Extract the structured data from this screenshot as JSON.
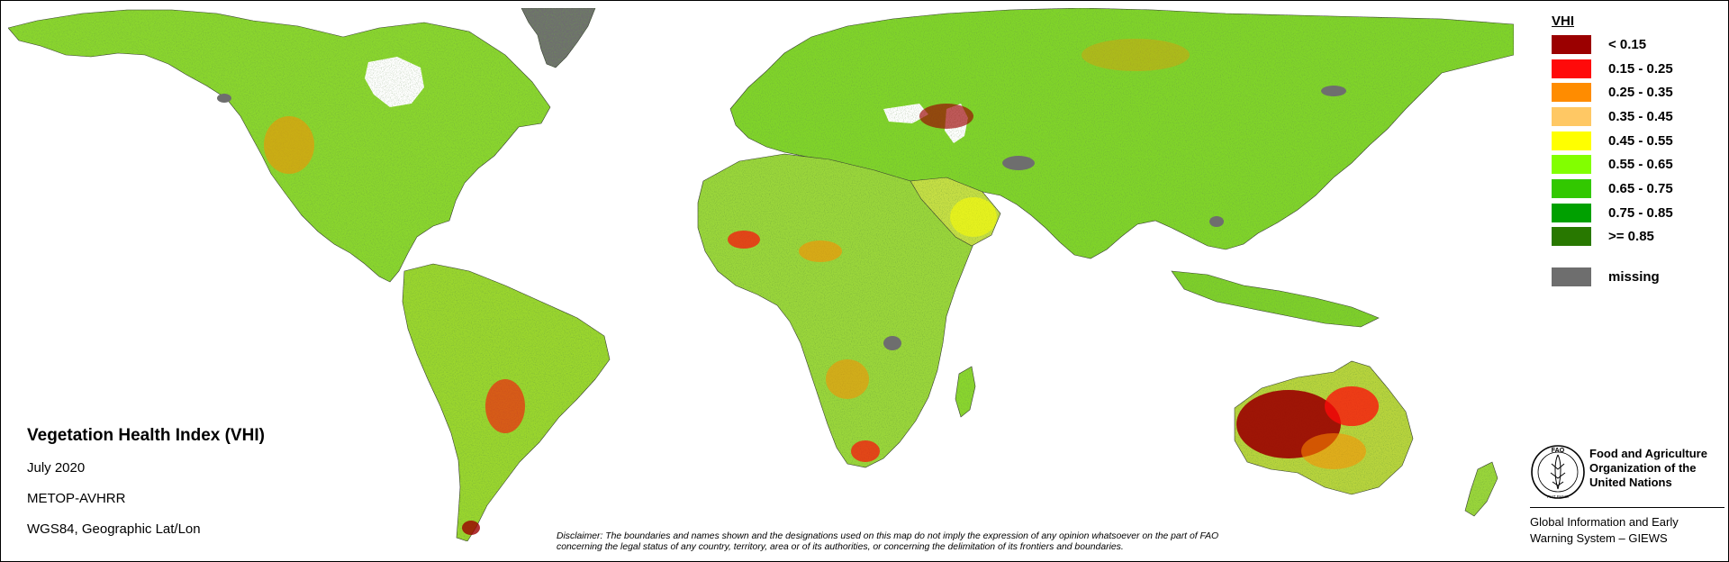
{
  "legend": {
    "title": "VHI",
    "classes": [
      {
        "label": "< 0.15",
        "color": "#9b0000"
      },
      {
        "label": "0.15 - 0.25",
        "color": "#ff0a0a"
      },
      {
        "label": "0.25 - 0.35",
        "color": "#ff8c00"
      },
      {
        "label": "0.35 - 0.45",
        "color": "#ffc864"
      },
      {
        "label": "0.45 - 0.55",
        "color": "#ffff00"
      },
      {
        "label": "0.55 - 0.65",
        "color": "#82ff00"
      },
      {
        "label": "0.65 - 0.75",
        "color": "#32c800"
      },
      {
        "label": "0.75 - 0.85",
        "color": "#00a000"
      },
      {
        "label": ">= 0.85",
        "color": "#287800"
      }
    ],
    "missing": {
      "label": "missing",
      "color": "#6e6e6e"
    }
  },
  "map_info": {
    "title": "Vegetation Health Index (VHI)",
    "date": "July 2020",
    "sensor": "METOP-AVHRR",
    "projection": "WGS84, Geographic Lat/Lon"
  },
  "disclaimer": {
    "line1": "Disclaimer: The boundaries and names shown and the designations used on this map do not imply the expression of any opinion whatsoever on the part of FAO",
    "line2": "concerning the legal status of any country, territory, area or of its authorities, or concerning the delimitation of its frontiers and boundaries."
  },
  "organization": {
    "name_line1": "Food and Agriculture",
    "name_line2": "Organization of the",
    "name_line3": "United Nations",
    "system_line1": "Global Information and Early",
    "system_line2": "Warning System – GIEWS",
    "logo_text": "FIAT PANIS",
    "logo_monogram": "FAO"
  },
  "colors": {
    "land_base": "#7fd62a",
    "ocean": "#ffffff",
    "missing": "#6e6e6e",
    "border": "#222222"
  }
}
